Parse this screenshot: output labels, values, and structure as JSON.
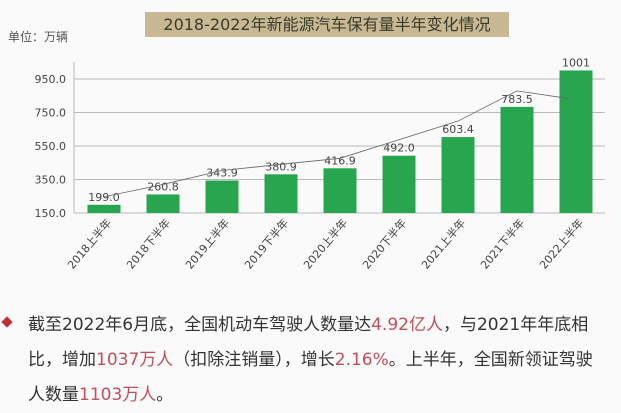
{
  "chart_data": {
    "type": "bar",
    "title": "2018-2022年新能源汽车保有量半年变化情况",
    "unit_label": "单位：万辆",
    "categories": [
      "2018上半年",
      "2018下半年",
      "2019上半年",
      "2019下半年",
      "2020上半年",
      "2020下半年",
      "2021上半年",
      "2021下半年",
      "2022上半年"
    ],
    "values": [
      199.0,
      260.8,
      343.9,
      380.9,
      416.9,
      492.0,
      603.4,
      783.5,
      1001
    ],
    "data_labels": [
      "199.0",
      "260.8",
      "343.9",
      "380.9",
      "416.9",
      "492.0",
      "603.4",
      "783.5",
      "1001"
    ],
    "yticks": [
      "150.0",
      "350.0",
      "550.0",
      "750.0",
      "950.0"
    ],
    "ylim": [
      150,
      1050
    ],
    "grid": true,
    "trendline": true,
    "bar_color": "#27a54f"
  },
  "text": {
    "p1": "截至2022年6月底，全国机动车驾驶人数量达",
    "h1": "4.92亿人",
    "p2": "，与2021年年底相比，增加",
    "h2": "1037万人",
    "p3": "（扣除注销量），增长",
    "h3": "2.16%",
    "p4": "。上半年，全国新领证驾驶人数量",
    "h4": "1103万人",
    "p5": "。"
  }
}
